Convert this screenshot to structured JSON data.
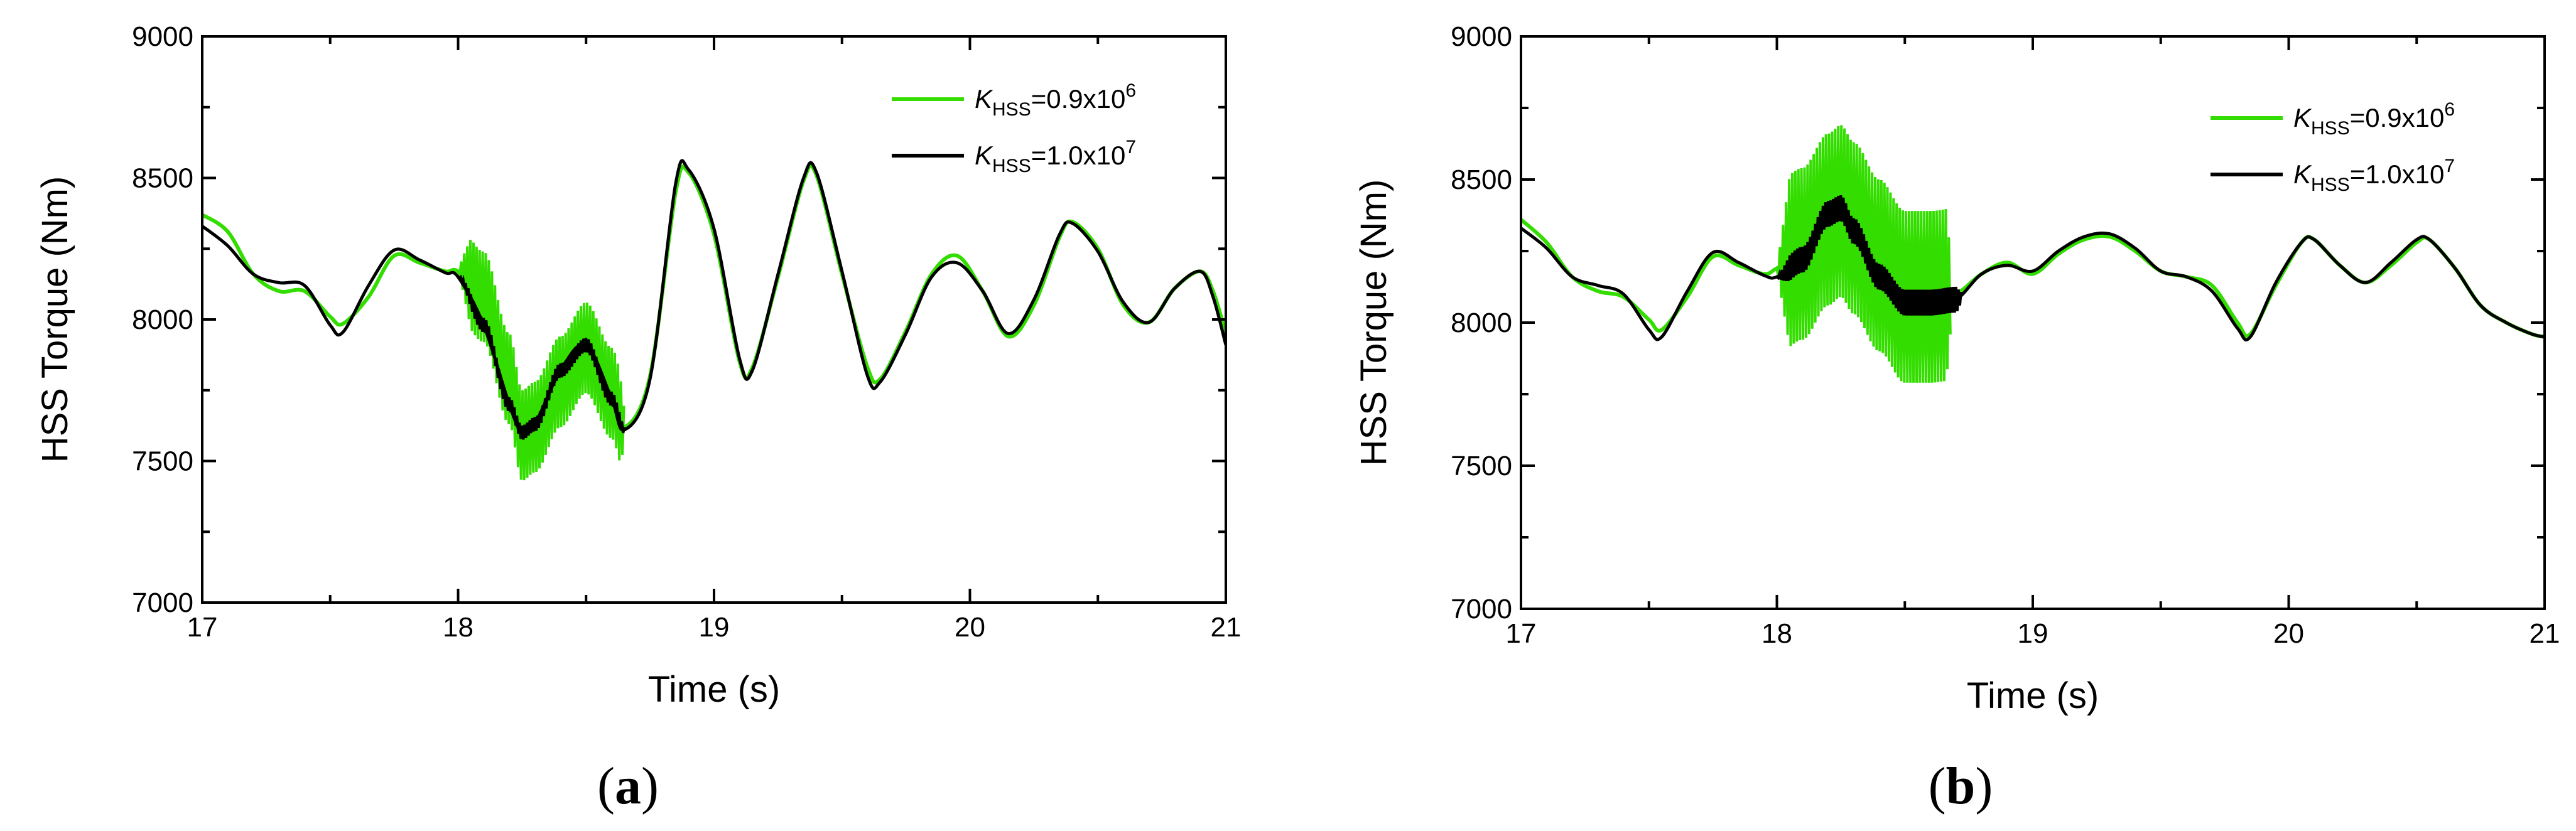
{
  "chart_data": [
    {
      "type": "line",
      "panel_label": "a",
      "xlabel": "Time (s)",
      "ylabel": "HSS Torque (Nm)",
      "xlim": [
        17,
        21
      ],
      "ylim": [
        7000,
        9000
      ],
      "x_ticks": [
        17,
        18,
        19,
        20,
        21
      ],
      "y_ticks": [
        7000,
        7500,
        8000,
        8500,
        9000
      ],
      "grid": false,
      "legend_position": "top-right",
      "legend": [
        {
          "symbol": "K",
          "sub": "HSS",
          "value": "=0.9x10",
          "exp": "6",
          "color": "#33dd00"
        },
        {
          "symbol": "K",
          "sub": "HSS",
          "value": "=1.0x10",
          "exp": "7",
          "color": "#000000"
        }
      ],
      "series": [
        {
          "name": "K_HSS=0.9x10^6",
          "color": "#33dd00",
          "points": [
            [
              17.0,
              8370
            ],
            [
              17.1,
              8310
            ],
            [
              17.2,
              8160
            ],
            [
              17.3,
              8100
            ],
            [
              17.4,
              8100
            ],
            [
              17.5,
              8010
            ],
            [
              17.55,
              7985
            ],
            [
              17.65,
              8080
            ],
            [
              17.75,
              8225
            ],
            [
              17.85,
              8200
            ],
            [
              17.95,
              8170
            ],
            [
              18.0,
              8170
            ],
            [
              18.1,
              8080
            ],
            [
              18.2,
              7790
            ],
            [
              18.25,
              7590
            ],
            [
              18.3,
              7620
            ],
            [
              18.4,
              7780
            ],
            [
              18.5,
              7900
            ],
            [
              18.6,
              7740
            ],
            [
              18.65,
              7620
            ],
            [
              18.75,
              7800
            ],
            [
              18.85,
              8450
            ],
            [
              18.9,
              8520
            ],
            [
              19.0,
              8300
            ],
            [
              19.1,
              7850
            ],
            [
              19.15,
              7830
            ],
            [
              19.25,
              8150
            ],
            [
              19.35,
              8490
            ],
            [
              19.4,
              8510
            ],
            [
              19.5,
              8160
            ],
            [
              19.6,
              7830
            ],
            [
              19.65,
              7790
            ],
            [
              19.75,
              7960
            ],
            [
              19.85,
              8160
            ],
            [
              19.95,
              8225
            ],
            [
              20.05,
              8100
            ],
            [
              20.15,
              7940
            ],
            [
              20.25,
              8050
            ],
            [
              20.35,
              8290
            ],
            [
              20.4,
              8345
            ],
            [
              20.5,
              8250
            ],
            [
              20.6,
              8050
            ],
            [
              20.7,
              7990
            ],
            [
              20.8,
              8110
            ],
            [
              20.9,
              8170
            ],
            [
              20.95,
              8100
            ],
            [
              21.0,
              7950
            ]
          ]
        },
        {
          "name": "K_HSS=1.0x10^7",
          "color": "#000000",
          "points": [
            [
              17.0,
              8330
            ],
            [
              17.1,
              8260
            ],
            [
              17.2,
              8160
            ],
            [
              17.3,
              8130
            ],
            [
              17.4,
              8120
            ],
            [
              17.5,
              7980
            ],
            [
              17.55,
              7955
            ],
            [
              17.65,
              8120
            ],
            [
              17.75,
              8245
            ],
            [
              17.85,
              8210
            ],
            [
              17.95,
              8165
            ],
            [
              18.0,
              8150
            ],
            [
              18.1,
              7980
            ],
            [
              18.2,
              7700
            ],
            [
              18.25,
              7600
            ],
            [
              18.3,
              7630
            ],
            [
              18.4,
              7820
            ],
            [
              18.5,
              7910
            ],
            [
              18.6,
              7720
            ],
            [
              18.65,
              7610
            ],
            [
              18.75,
              7790
            ],
            [
              18.85,
              8480
            ],
            [
              18.9,
              8530
            ],
            [
              19.0,
              8320
            ],
            [
              19.1,
              7860
            ],
            [
              19.15,
              7820
            ],
            [
              19.25,
              8160
            ],
            [
              19.35,
              8500
            ],
            [
              19.4,
              8520
            ],
            [
              19.5,
              8170
            ],
            [
              19.6,
              7800
            ],
            [
              19.65,
              7780
            ],
            [
              19.75,
              7950
            ],
            [
              19.85,
              8150
            ],
            [
              19.95,
              8200
            ],
            [
              20.05,
              8100
            ],
            [
              20.15,
              7950
            ],
            [
              20.25,
              8070
            ],
            [
              20.35,
              8300
            ],
            [
              20.4,
              8340
            ],
            [
              20.5,
              8240
            ],
            [
              20.6,
              8060
            ],
            [
              20.7,
              7990
            ],
            [
              20.8,
              8110
            ],
            [
              20.9,
              8170
            ],
            [
              20.95,
              8080
            ],
            [
              21.0,
              7910
            ]
          ]
        }
      ],
      "oscillation_bands": [
        {
          "series": "K_HSS=0.9x10^6",
          "x_range": [
            18.0,
            18.65
          ],
          "amplitude": 160,
          "period": 0.012,
          "color": "#33dd00"
        },
        {
          "series": "K_HSS=1.0x10^7",
          "x_range": [
            18.0,
            18.65
          ],
          "amplitude": 25,
          "period": 0.01,
          "color": "#000000"
        }
      ]
    },
    {
      "type": "line",
      "panel_label": "b",
      "xlabel": "Time (s)",
      "ylabel": "HSS Torque (Nm)",
      "xlim": [
        17,
        21
      ],
      "ylim": [
        7000,
        9000
      ],
      "x_ticks": [
        17,
        18,
        19,
        20,
        21
      ],
      "y_ticks": [
        7000,
        7500,
        8000,
        8500,
        9000
      ],
      "grid": false,
      "legend_position": "top-right",
      "legend": [
        {
          "symbol": "K",
          "sub": "HSS",
          "value": "=0.9x10",
          "exp": "6",
          "color": "#33dd00"
        },
        {
          "symbol": "K",
          "sub": "HSS",
          "value": "=1.0x10",
          "exp": "7",
          "color": "#000000"
        }
      ],
      "series": [
        {
          "name": "K_HSS=0.9x10^6",
          "color": "#33dd00",
          "points": [
            [
              17.0,
              8360
            ],
            [
              17.1,
              8280
            ],
            [
              17.2,
              8160
            ],
            [
              17.3,
              8110
            ],
            [
              17.4,
              8090
            ],
            [
              17.5,
              8010
            ],
            [
              17.55,
              7975
            ],
            [
              17.65,
              8090
            ],
            [
              17.75,
              8230
            ],
            [
              17.85,
              8200
            ],
            [
              17.95,
              8170
            ],
            [
              18.0,
              8190
            ],
            [
              18.1,
              8240
            ],
            [
              18.2,
              8360
            ],
            [
              18.25,
              8390
            ],
            [
              18.3,
              8330
            ],
            [
              18.4,
              8200
            ],
            [
              18.5,
              8090
            ],
            [
              18.6,
              8090
            ],
            [
              18.7,
              8100
            ],
            [
              18.8,
              8170
            ],
            [
              18.9,
              8210
            ],
            [
              19.0,
              8170
            ],
            [
              19.1,
              8240
            ],
            [
              19.2,
              8290
            ],
            [
              19.3,
              8300
            ],
            [
              19.4,
              8250
            ],
            [
              19.5,
              8180
            ],
            [
              19.6,
              8160
            ],
            [
              19.7,
              8130
            ],
            [
              19.8,
              8000
            ],
            [
              19.85,
              7960
            ],
            [
              19.95,
              8130
            ],
            [
              20.05,
              8280
            ],
            [
              20.1,
              8290
            ],
            [
              20.2,
              8200
            ],
            [
              20.3,
              8140
            ],
            [
              20.4,
              8200
            ],
            [
              20.5,
              8280
            ],
            [
              20.55,
              8290
            ],
            [
              20.65,
              8190
            ],
            [
              20.75,
              8060
            ],
            [
              20.85,
              8000
            ],
            [
              20.95,
              7960
            ],
            [
              21.0,
              7950
            ]
          ]
        },
        {
          "name": "K_HSS=1.0x10^7",
          "color": "#000000",
          "points": [
            [
              17.0,
              8330
            ],
            [
              17.1,
              8260
            ],
            [
              17.2,
              8160
            ],
            [
              17.3,
              8130
            ],
            [
              17.4,
              8100
            ],
            [
              17.5,
              7975
            ],
            [
              17.55,
              7950
            ],
            [
              17.65,
              8110
            ],
            [
              17.75,
              8245
            ],
            [
              17.85,
              8210
            ],
            [
              17.95,
              8165
            ],
            [
              18.0,
              8160
            ],
            [
              18.1,
              8220
            ],
            [
              18.2,
              8380
            ],
            [
              18.25,
              8400
            ],
            [
              18.3,
              8320
            ],
            [
              18.4,
              8160
            ],
            [
              18.5,
              8070
            ],
            [
              18.6,
              8070
            ],
            [
              18.7,
              8080
            ],
            [
              18.8,
              8170
            ],
            [
              18.9,
              8200
            ],
            [
              19.0,
              8180
            ],
            [
              19.1,
              8250
            ],
            [
              19.2,
              8300
            ],
            [
              19.3,
              8310
            ],
            [
              19.4,
              8260
            ],
            [
              19.5,
              8180
            ],
            [
              19.6,
              8160
            ],
            [
              19.7,
              8110
            ],
            [
              19.8,
              7980
            ],
            [
              19.85,
              7950
            ],
            [
              19.95,
              8140
            ],
            [
              20.05,
              8280
            ],
            [
              20.1,
              8290
            ],
            [
              20.2,
              8200
            ],
            [
              20.3,
              8140
            ],
            [
              20.4,
              8210
            ],
            [
              20.5,
              8290
            ],
            [
              20.55,
              8290
            ],
            [
              20.65,
              8190
            ],
            [
              20.75,
              8060
            ],
            [
              20.85,
              8000
            ],
            [
              20.95,
              7960
            ],
            [
              21.0,
              7950
            ]
          ]
        }
      ],
      "oscillation_bands": [
        {
          "series": "K_HSS=0.9x10^6",
          "x_range": [
            18.0,
            18.68
          ],
          "amplitude": 300,
          "period": 0.012,
          "color": "#33dd00"
        },
        {
          "series": "K_HSS=1.0x10^7",
          "x_range": [
            18.0,
            18.72
          ],
          "amplitude": 45,
          "period": 0.01,
          "color": "#000000"
        }
      ]
    }
  ]
}
